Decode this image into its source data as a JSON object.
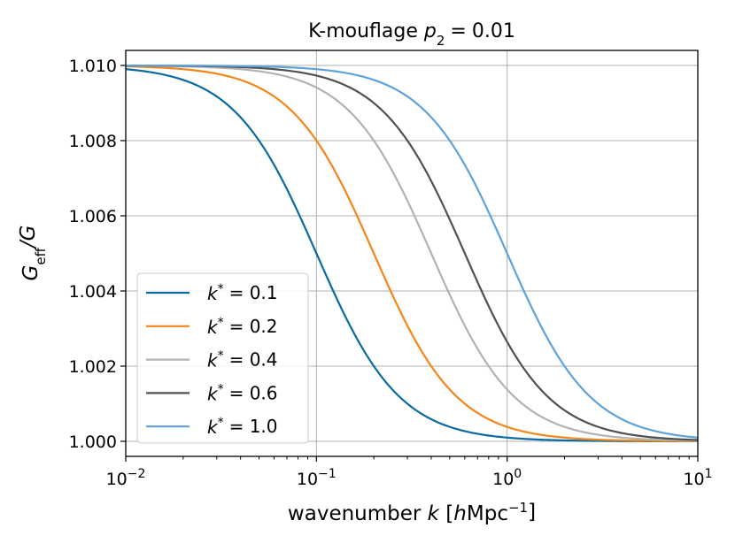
{
  "chart_data": {
    "type": "line",
    "title_main": "K-mouflage",
    "title_param": "p",
    "title_param_sub": "2",
    "title_value": "0.01",
    "xlabel_main": "wavenumber",
    "xlabel_var": "k",
    "xlabel_unit_h": "h",
    "xlabel_unit_rest": "Mpc",
    "xlabel_unit_exp": "−1",
    "ylabel_main": "G",
    "ylabel_sub": "eff",
    "ylabel_den": "/G",
    "x_scale": "log",
    "xlim": [
      0.01,
      10
    ],
    "ylim": [
      0.9996,
      1.0104
    ],
    "x_ticks": [
      {
        "value": 0.01,
        "base": "10",
        "exp": "−2"
      },
      {
        "value": 0.1,
        "base": "10",
        "exp": "−1"
      },
      {
        "value": 1,
        "base": "10",
        "exp": "0"
      },
      {
        "value": 10,
        "base": "10",
        "exp": "1"
      }
    ],
    "y_ticks": [
      {
        "value": 1.0,
        "label": "1.000"
      },
      {
        "value": 1.002,
        "label": "1.002"
      },
      {
        "value": 1.004,
        "label": "1.004"
      },
      {
        "value": 1.006,
        "label": "1.006"
      },
      {
        "value": 1.008,
        "label": "1.008"
      },
      {
        "value": 1.01,
        "label": "1.010"
      }
    ],
    "grid": true,
    "legend_position": "lower-left",
    "model": {
      "amplitude": 0.01,
      "baseline": 1.0
    },
    "series": [
      {
        "name": "k* = 0.1",
        "legend_var": "k",
        "legend_sup": "*",
        "legend_value": "= 0.1",
        "kstar": 0.1,
        "color": "#0a6aa1"
      },
      {
        "name": "k* = 0.2",
        "legend_var": "k",
        "legend_sup": "*",
        "legend_value": "= 0.2",
        "kstar": 0.2,
        "color": "#f58518"
      },
      {
        "name": "k* = 0.4",
        "legend_var": "k",
        "legend_sup": "*",
        "legend_value": "= 0.4",
        "kstar": 0.4,
        "color": "#b2b2b2"
      },
      {
        "name": "k* = 0.6",
        "legend_var": "k",
        "legend_sup": "*",
        "legend_value": "= 0.6",
        "kstar": 0.6,
        "color": "#505050"
      },
      {
        "name": "k* = 1.0",
        "legend_var": "k",
        "legend_sup": "*",
        "legend_value": "= 1.0",
        "kstar": 1.0,
        "color": "#5fa2d9"
      }
    ]
  }
}
